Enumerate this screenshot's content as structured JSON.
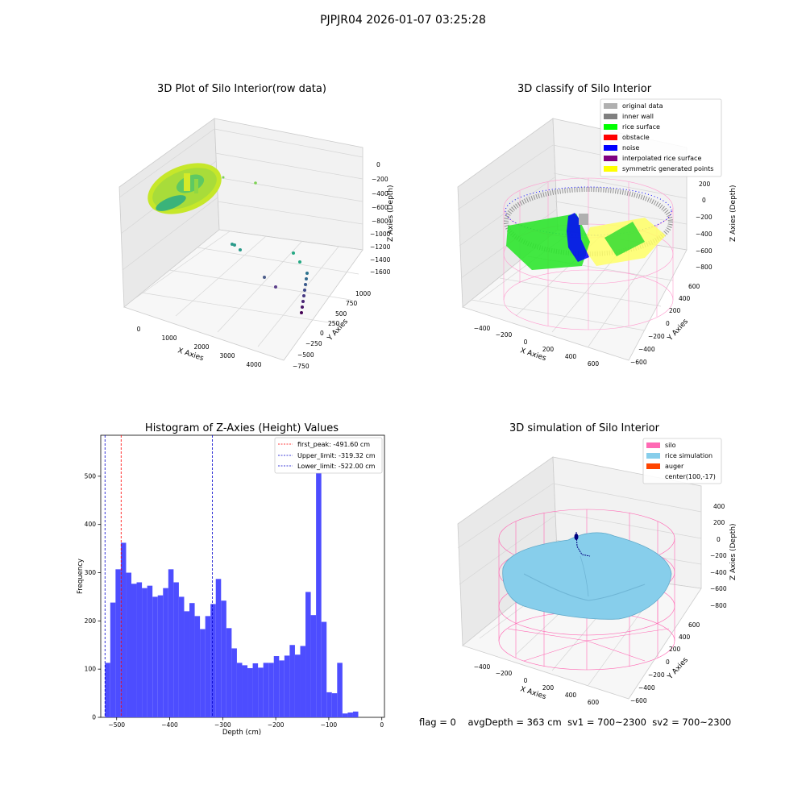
{
  "figure": {
    "suptitle": "PJPJR04 2026-01-07 03:25:28",
    "status": {
      "flag": "flag = 0",
      "avg_depth": "avgDepth = 363 cm",
      "sv1": "sv1 = 700~2300",
      "sv2": "sv2 = 700~2300"
    }
  },
  "colors": {
    "hist_bar": "#4d4dff",
    "first_peak_line": "#ff0000",
    "limit_lines": "#0000cc",
    "pane_back": "#f2f2f2",
    "pane_side": "#e9e9e9",
    "pane_floor": "#f7f7f7",
    "grid": "#d6d6d6",
    "silo_wire": "#ff69b4",
    "rice_sim": "#87ceeb"
  },
  "plot1": {
    "title": "3D Plot of Silo Interior(row data)",
    "xlabel": "X Axies",
    "ylabel": "Y Axies",
    "zlabel": "Z Axies (Depth)",
    "xticks": [
      "0",
      "1000",
      "2000",
      "3000",
      "4000"
    ],
    "yticks": [
      "−750",
      "−500",
      "−250",
      "0",
      "250",
      "500",
      "750",
      "1000"
    ],
    "zticks": [
      "0",
      "−200",
      "−400",
      "−600",
      "−800",
      "−1000",
      "−1200",
      "−1400",
      "−1600"
    ]
  },
  "plot2": {
    "title": "3D classify of Silo Interior",
    "xlabel": "X Axies",
    "ylabel": "Y Axies",
    "zlabel": "Z Axies (Depth)",
    "xticks": [
      "−400",
      "−200",
      "0",
      "200",
      "400",
      "600"
    ],
    "yticks": [
      "−600",
      "−400",
      "−200",
      "0",
      "200",
      "400",
      "600"
    ],
    "zticks": [
      "200",
      "0",
      "−200",
      "−400",
      "−600",
      "−800"
    ],
    "legend": [
      {
        "label": "original data",
        "color": "#b0b0b0"
      },
      {
        "label": "inner wall",
        "color": "#808080"
      },
      {
        "label": "rice surface",
        "color": "#00ff00"
      },
      {
        "label": "obstacle",
        "color": "#ff0000"
      },
      {
        "label": "noise",
        "color": "#0000ff"
      },
      {
        "label": "interpolated rice surface",
        "color": "#800080"
      },
      {
        "label": "symmetric generated points",
        "color": "#ffff00"
      }
    ]
  },
  "plot4": {
    "title": "3D simulation of Silo Interior",
    "xlabel": "X Axies",
    "ylabel": "Y Axies",
    "zlabel": "Z Axies (Depth)",
    "xticks": [
      "−400",
      "−200",
      "0",
      "200",
      "400",
      "600"
    ],
    "yticks": [
      "−600",
      "−400",
      "−200",
      "0",
      "200",
      "400",
      "600"
    ],
    "zticks": [
      "400",
      "200",
      "0",
      "−200",
      "−400",
      "−600",
      "−800"
    ],
    "legend": [
      {
        "label": "silo",
        "color": "#ff69b4"
      },
      {
        "label": "rice simulation",
        "color": "#87ceeb"
      },
      {
        "label": "auger",
        "color": "#ff4500"
      },
      {
        "label": "center(100,-17)",
        "color": ""
      }
    ]
  },
  "chart_data": {
    "type": "bar",
    "title": "Histogram of Z-Axies (Height) Values",
    "xlabel": "Depth (cm)",
    "ylabel": "Frequency",
    "xlim": [
      -530,
      5
    ],
    "ylim": [
      0,
      585
    ],
    "xticks": [
      "−500",
      "−400",
      "−300",
      "−200",
      "−100",
      "0"
    ],
    "xtick_values": [
      -500,
      -400,
      -300,
      -200,
      -100,
      0
    ],
    "yticks": [
      "0",
      "100",
      "200",
      "300",
      "400",
      "500"
    ],
    "ytick_values": [
      0,
      100,
      200,
      300,
      400,
      500
    ],
    "bin_start": -522,
    "bin_width": 9.95,
    "values": [
      113,
      238,
      307,
      362,
      300,
      277,
      280,
      268,
      273,
      250,
      253,
      268,
      307,
      280,
      250,
      220,
      237,
      210,
      183,
      210,
      235,
      287,
      242,
      185,
      143,
      113,
      108,
      102,
      112,
      103,
      113,
      113,
      127,
      118,
      128,
      150,
      130,
      148,
      260,
      212,
      555,
      198,
      52,
      50,
      113,
      8,
      10,
      12
    ],
    "vlines": [
      {
        "label": "first_peak: -491.60 cm",
        "x": -491.6,
        "color": "#ff0000"
      },
      {
        "label": "Upper_limit: -319.32 cm",
        "x": -319.32,
        "color": "#0000cc"
      },
      {
        "label": "Lower_limit: -522.00 cm",
        "x": -522.0,
        "color": "#0000cc"
      }
    ],
    "legend_position": "top-right"
  }
}
